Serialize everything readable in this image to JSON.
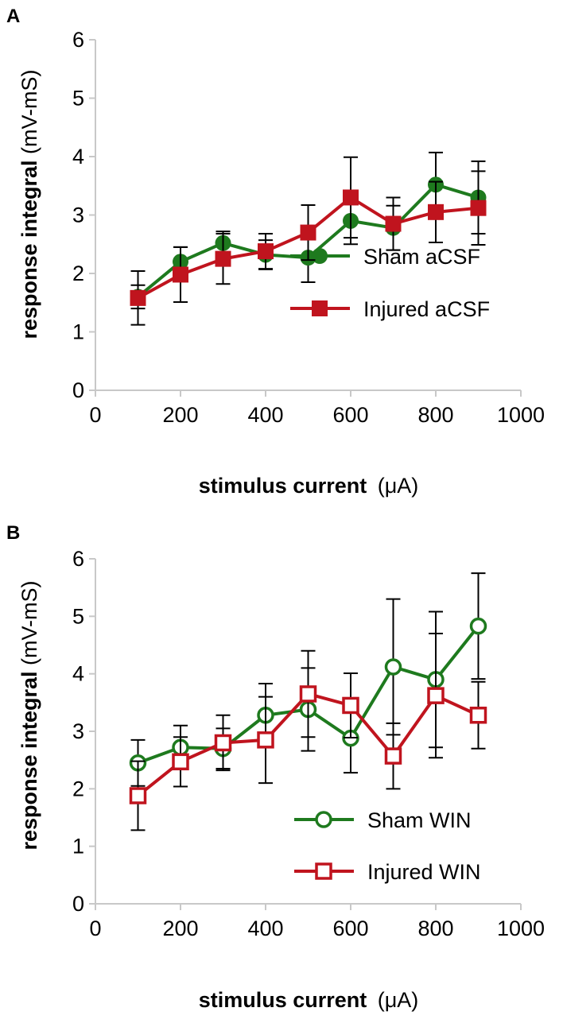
{
  "chart_data": [
    {
      "type": "line",
      "panel": "A",
      "xlabel": "stimulus current",
      "xunit": "(μA)",
      "ylabel": "response integral",
      "yunit": "(mV-mS)",
      "xlim": [
        0,
        1000
      ],
      "ylim": [
        0,
        6
      ],
      "xticks": [
        "0",
        "200",
        "400",
        "600",
        "800",
        "1000"
      ],
      "yticks": [
        "0",
        "1",
        "2",
        "3",
        "4",
        "5",
        "6"
      ],
      "legend_position": "bottom-right",
      "grid": false,
      "series": [
        {
          "name": "Sham aCSF",
          "color": "#1e7a1e",
          "marker": "circle-filled",
          "x": [
            100,
            200,
            300,
            400,
            500,
            600,
            700,
            800,
            900
          ],
          "y": [
            1.6,
            2.2,
            2.52,
            2.32,
            2.27,
            2.9,
            2.78,
            3.52,
            3.3
          ],
          "err": [
            0.2,
            0.25,
            0.2,
            0.25,
            0.42,
            0.4,
            0.38,
            0.55,
            0.62
          ]
        },
        {
          "name": "Injured aCSF",
          "color": "#c0141e",
          "marker": "square-filled",
          "x": [
            100,
            200,
            300,
            400,
            500,
            600,
            700,
            800,
            900
          ],
          "y": [
            1.58,
            1.98,
            2.25,
            2.38,
            2.7,
            3.3,
            2.85,
            3.05,
            3.12
          ],
          "err": [
            0.46,
            0.47,
            0.43,
            0.3,
            0.47,
            0.69,
            0.45,
            0.52,
            0.63
          ]
        }
      ]
    },
    {
      "type": "line",
      "panel": "B",
      "xlabel": "stimulus current",
      "xunit": "(μA)",
      "ylabel": "response integral",
      "yunit": "(mV-mS)",
      "xlim": [
        0,
        1000
      ],
      "ylim": [
        0,
        6
      ],
      "xticks": [
        "0",
        "200",
        "400",
        "600",
        "800",
        "1000"
      ],
      "yticks": [
        "0",
        "1",
        "2",
        "3",
        "4",
        "5",
        "6"
      ],
      "legend_position": "bottom-right",
      "grid": false,
      "series": [
        {
          "name": "Sham WIN",
          "color": "#1e7a1e",
          "marker": "circle-open",
          "x": [
            100,
            200,
            300,
            400,
            500,
            600,
            700,
            800,
            900
          ],
          "y": [
            2.45,
            2.72,
            2.7,
            3.28,
            3.38,
            2.88,
            4.12,
            3.9,
            4.83
          ],
          "err": [
            0.4,
            0.38,
            0.35,
            0.55,
            0.72,
            0.6,
            1.18,
            1.18,
            0.92
          ]
        },
        {
          "name": "Injured WIN",
          "color": "#c0141e",
          "marker": "square-open",
          "x": [
            100,
            200,
            300,
            400,
            500,
            600,
            700,
            800,
            900
          ],
          "y": [
            1.88,
            2.47,
            2.8,
            2.85,
            3.65,
            3.45,
            2.57,
            3.62,
            3.28
          ],
          "err": [
            0.6,
            0.43,
            0.48,
            0.75,
            0.75,
            0.56,
            0.57,
            1.08,
            0.58
          ]
        }
      ]
    }
  ]
}
